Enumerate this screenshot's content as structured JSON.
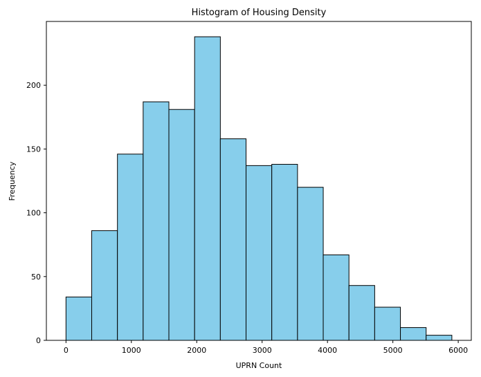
{
  "chart_data": {
    "type": "bar",
    "subtype": "histogram",
    "title": "Histogram of Housing Density",
    "xlabel": "UPRN Count",
    "ylabel": "Frequency",
    "bin_edges": [
      0,
      393.5,
      787,
      1180.5,
      1574,
      1967.5,
      2361,
      2754.5,
      3148,
      3541.5,
      3935,
      4328.5,
      4722,
      5115.5,
      5509,
      5902.5
    ],
    "values": [
      34,
      86,
      146,
      187,
      181,
      238,
      158,
      137,
      138,
      120,
      67,
      43,
      26,
      10,
      4
    ],
    "xlim": [
      -300,
      6200
    ],
    "ylim": [
      0,
      250
    ],
    "xticks": [
      0,
      1000,
      2000,
      3000,
      4000,
      5000,
      6000
    ],
    "yticks": [
      0,
      50,
      100,
      150,
      200
    ],
    "grid": false,
    "colors": {
      "bar_fill": "#87CEEB",
      "bar_edge": "#000000"
    }
  }
}
